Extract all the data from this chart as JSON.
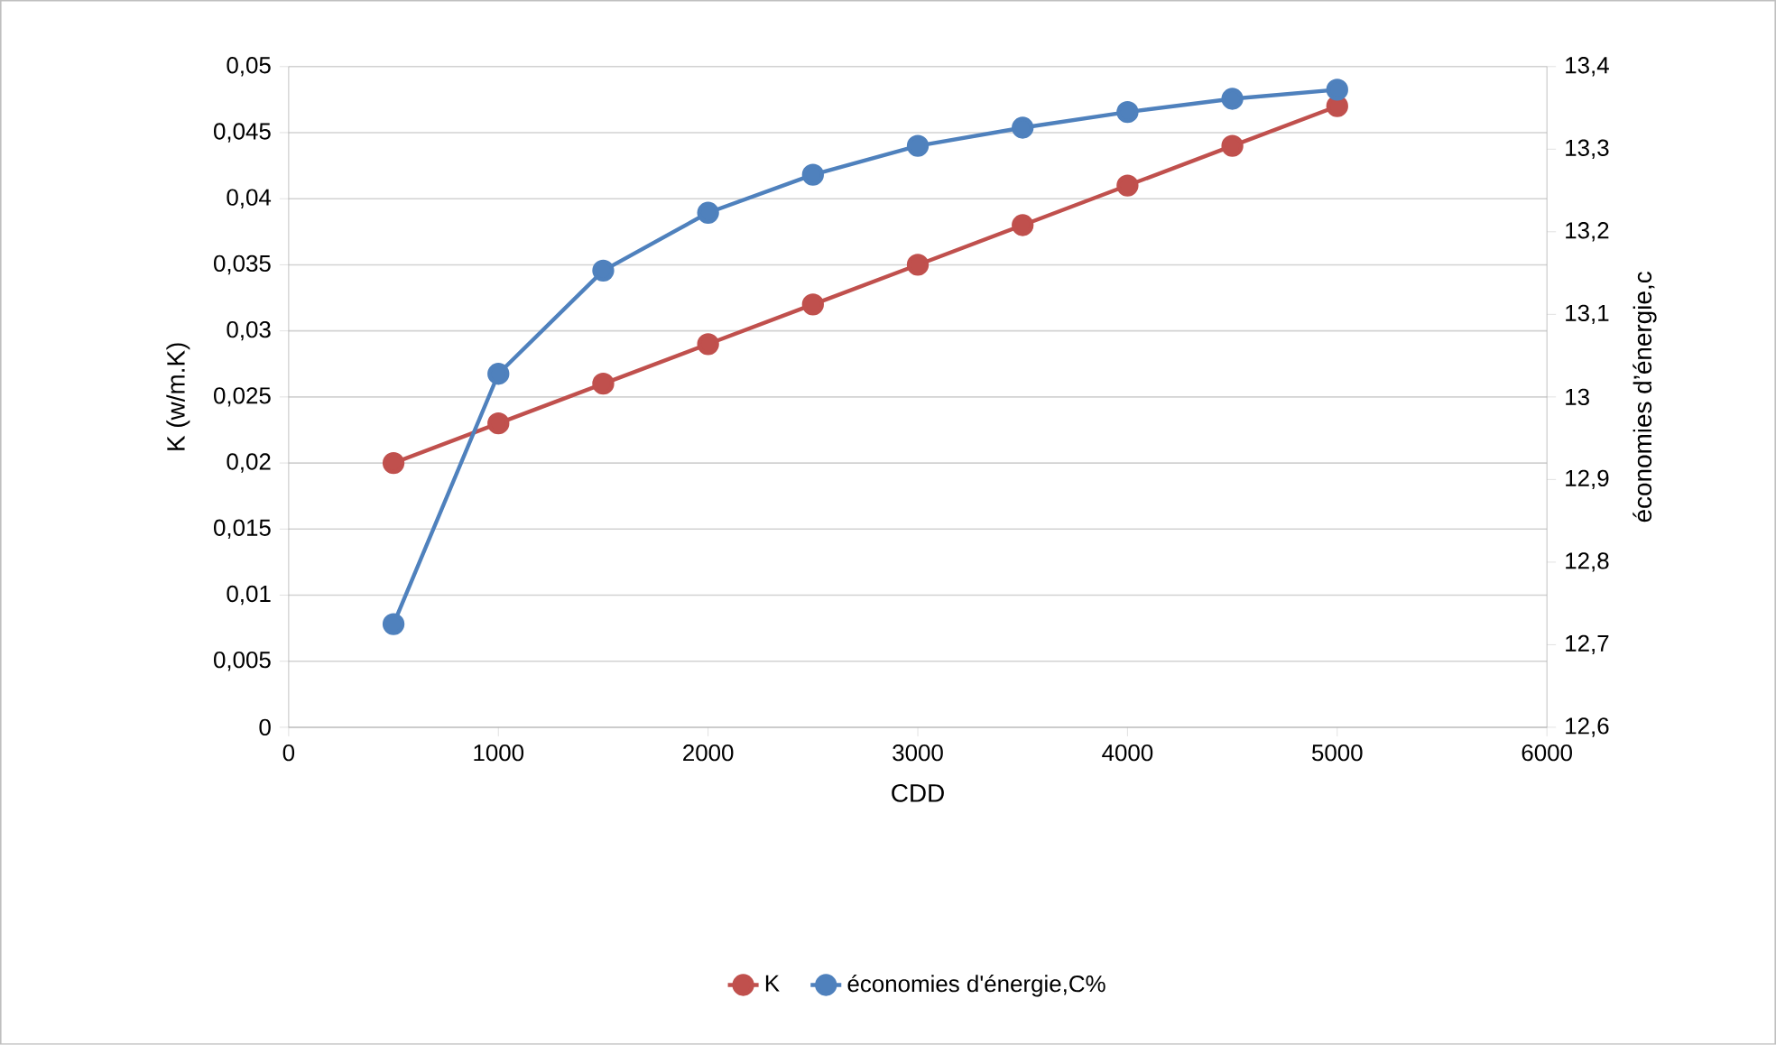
{
  "chart_data": {
    "type": "line",
    "xlabel": "CDD",
    "ylabel": "K (w/m.K)",
    "y2label": "économies d’énergie,c",
    "x": [
      500,
      1000,
      1500,
      2000,
      2500,
      3000,
      3500,
      4000,
      4500,
      5000
    ],
    "series": [
      {
        "name": "K",
        "color": "#c0504d",
        "values": [
          0.02,
          0.023,
          0.026,
          0.029,
          0.032,
          0.035,
          0.038,
          0.041,
          0.044,
          0.047
        ]
      },
      {
        "name": "économies d'énergie,C%",
        "color": "#4f81bd",
        "axis": "y2",
        "values": [
          12.725,
          13.028,
          13.153,
          13.223,
          13.269,
          13.304,
          13.326,
          13.345,
          13.361,
          13.372
        ]
      }
    ],
    "xlim": [
      0,
      6000
    ],
    "xticks": [
      0,
      1000,
      2000,
      3000,
      4000,
      5000,
      6000
    ],
    "ylim": [
      0,
      0.05
    ],
    "yticks": [
      {
        "value": 0,
        "label": "0"
      },
      {
        "value": 0.005,
        "label": "0,005"
      },
      {
        "value": 0.01,
        "label": "0,01"
      },
      {
        "value": 0.015,
        "label": "0,015"
      },
      {
        "value": 0.02,
        "label": "0,02"
      },
      {
        "value": 0.025,
        "label": "0,025"
      },
      {
        "value": 0.03,
        "label": "0,03"
      },
      {
        "value": 0.035,
        "label": "0,035"
      },
      {
        "value": 0.04,
        "label": "0,04"
      },
      {
        "value": 0.045,
        "label": "0,045"
      },
      {
        "value": 0.05,
        "label": "0,05"
      }
    ],
    "y2lim": [
      12.6,
      13.4
    ],
    "y2ticks": [
      {
        "value": 12.6,
        "label": "12,6"
      },
      {
        "value": 12.7,
        "label": "12,7"
      },
      {
        "value": 12.8,
        "label": "12,8"
      },
      {
        "value": 12.9,
        "label": "12,9"
      },
      {
        "value": 13,
        "label": "13"
      },
      {
        "value": 13.1,
        "label": "13,1"
      },
      {
        "value": 13.2,
        "label": "13,2"
      },
      {
        "value": 13.3,
        "label": "13,3"
      },
      {
        "value": 13.4,
        "label": "13,4"
      }
    ],
    "grid": "y",
    "legend": "bottom",
    "marker": "circle",
    "line_style": "solid"
  }
}
